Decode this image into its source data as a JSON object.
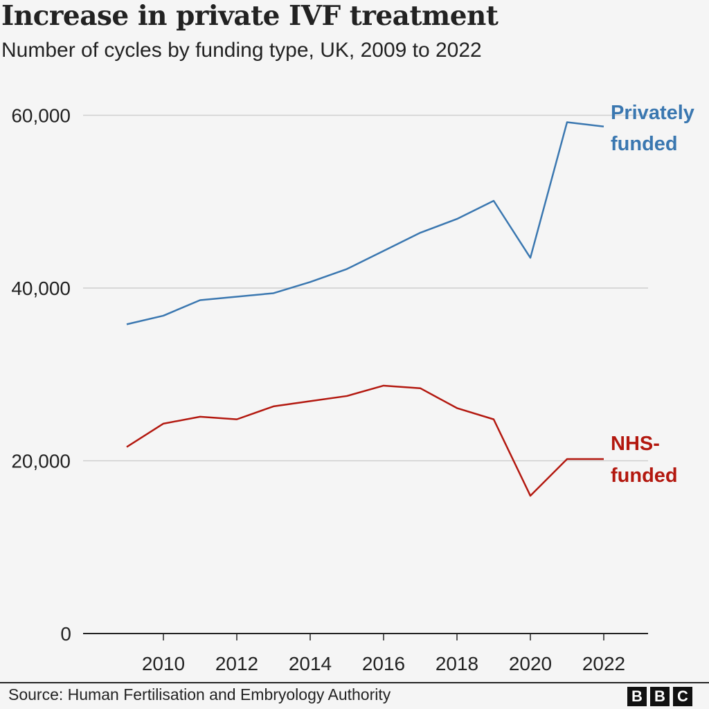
{
  "title": "Increase in private IVF treatment",
  "subtitle": "Number of cycles by funding type, UK, 2009 to 2022",
  "source": "Source: Human Fertilisation and Embryology Authority",
  "logo": "BBC",
  "chart_data": {
    "type": "line",
    "title": "Increase in private IVF treatment",
    "subtitle": "Number of cycles by funding type, UK, 2009 to 2022",
    "x": [
      2009,
      2010,
      2011,
      2012,
      2013,
      2014,
      2015,
      2016,
      2017,
      2018,
      2019,
      2020,
      2021,
      2022
    ],
    "xticks": [
      "2010",
      "2012",
      "2014",
      "2016",
      "2018",
      "2020",
      "2022"
    ],
    "yticks": [
      "0",
      "20,000",
      "40,000",
      "60,000"
    ],
    "ylim": [
      0,
      60000
    ],
    "grid": true,
    "series": [
      {
        "name": "Privately funded",
        "name_lines": [
          "Privately",
          "funded"
        ],
        "color": "#3a77b0",
        "values": [
          35800,
          36800,
          38600,
          39000,
          39400,
          40700,
          42200,
          44300,
          46400,
          48000,
          50100,
          43500,
          59200,
          58700
        ]
      },
      {
        "name": "NHS-funded",
        "name_lines": [
          "NHS-",
          "funded"
        ],
        "color": "#b3180f",
        "values": [
          21600,
          24300,
          25100,
          24800,
          26300,
          26900,
          27500,
          28700,
          28400,
          26100,
          24800,
          15950,
          20200,
          20200
        ]
      }
    ]
  }
}
